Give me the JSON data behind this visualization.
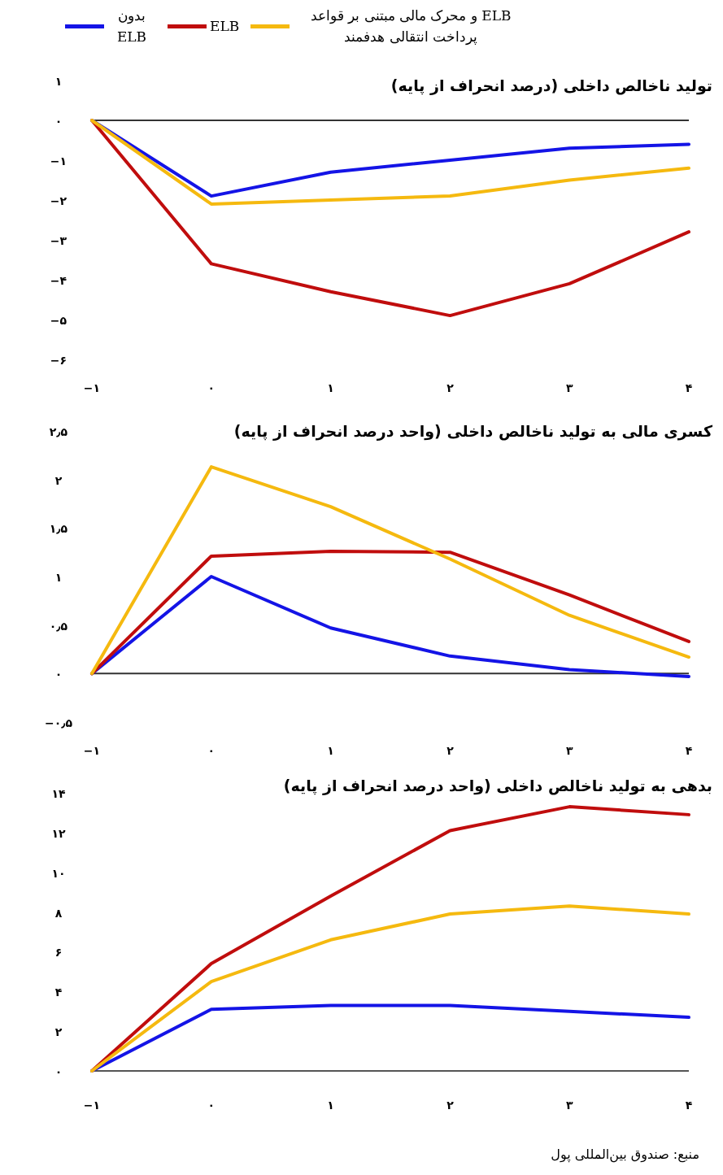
{
  "chart_data": [
    {
      "type": "line",
      "title": "تولید ناخالص داخلی (درصد انحراف از پایه)",
      "x": [
        -1,
        0,
        1,
        2,
        3,
        4
      ],
      "xlim": [
        -1,
        4
      ],
      "xticks": [
        {
          "value": -1,
          "label": "−۱"
        },
        {
          "value": 0,
          "label": "۰"
        },
        {
          "value": 1,
          "label": "۱"
        },
        {
          "value": 2,
          "label": "۲"
        },
        {
          "value": 3,
          "label": "۳"
        },
        {
          "value": 4,
          "label": "۴"
        }
      ],
      "ylim": [
        -6,
        1
      ],
      "yticks": [
        {
          "value": 1,
          "label": "۱"
        },
        {
          "value": 0,
          "label": "۰"
        },
        {
          "value": -1,
          "label": "−۱"
        },
        {
          "value": -2,
          "label": "−۲"
        },
        {
          "value": -3,
          "label": "−۳"
        },
        {
          "value": -4,
          "label": "−۴"
        },
        {
          "value": -5,
          "label": "−۵"
        },
        {
          "value": -6,
          "label": "−۶"
        }
      ],
      "legend": "top",
      "grid": false,
      "ref_lines": [
        {
          "axis": "y",
          "value": 0,
          "color": "#333333"
        }
      ],
      "series": [
        {
          "name": "بدون ELB",
          "color": "#1414e6",
          "values": [
            0,
            -1.9,
            -1.3,
            -1.0,
            -0.7,
            -0.6
          ]
        },
        {
          "name": "ELB",
          "color": "#c00d0d",
          "values": [
            0,
            -3.6,
            -4.3,
            -4.9,
            -4.1,
            -2.8
          ]
        },
        {
          "name": "ELB و محرک مالی مبتنی بر قواعد پرداخت انتقالی هدفمند",
          "color": "#f5b90f",
          "values": [
            0,
            -2.1,
            -2.0,
            -1.9,
            -1.5,
            -1.2
          ]
        }
      ]
    },
    {
      "type": "line",
      "title": "کسری مالی به تولید ناخالص داخلی (واحد درصد انحراف از پایه)",
      "x": [
        -1,
        0,
        1,
        2,
        3,
        4
      ],
      "xlim": [
        -1,
        4
      ],
      "xticks": [
        {
          "value": -1,
          "label": "−۱"
        },
        {
          "value": 0,
          "label": "۰"
        },
        {
          "value": 1,
          "label": "۱"
        },
        {
          "value": 2,
          "label": "۲"
        },
        {
          "value": 3,
          "label": "۳"
        },
        {
          "value": 4,
          "label": "۴"
        }
      ],
      "ylim": [
        -0.5,
        2.5
      ],
      "yticks": [
        {
          "value": 2.5,
          "label": "۲٫۵"
        },
        {
          "value": 2,
          "label": "۲"
        },
        {
          "value": 1.5,
          "label": "۱٫۵"
        },
        {
          "value": 1,
          "label": "۱"
        },
        {
          "value": 0.5,
          "label": "۰٫۵"
        },
        {
          "value": 0,
          "label": "۰"
        },
        {
          "value": -0.5,
          "label": "−۰٫۵"
        }
      ],
      "grid": false,
      "ref_lines": [
        {
          "axis": "y",
          "value": 0,
          "color": "#333333"
        }
      ],
      "series": [
        {
          "color": "#1414e6",
          "values": [
            0,
            1.0,
            0.47,
            0.18,
            0.04,
            -0.03
          ]
        },
        {
          "color": "#c00d0d",
          "values": [
            0,
            1.21,
            1.26,
            1.25,
            0.81,
            0.33
          ]
        },
        {
          "color": "#f5b90f",
          "values": [
            0,
            2.13,
            1.72,
            1.18,
            0.6,
            0.17
          ]
        }
      ]
    },
    {
      "type": "line",
      "title": "بدهی به تولید ناخالص داخلی (واحد درصد انحراف از پایه)",
      "x": [
        -1,
        0,
        1,
        2,
        3,
        4
      ],
      "xlim": [
        -1,
        4
      ],
      "xticks": [
        {
          "value": -1,
          "label": "−۱"
        },
        {
          "value": 0,
          "label": "۰"
        },
        {
          "value": 1,
          "label": "۱"
        },
        {
          "value": 2,
          "label": "۲"
        },
        {
          "value": 3,
          "label": "۳"
        },
        {
          "value": 4,
          "label": "۴"
        }
      ],
      "ylim": [
        0,
        14
      ],
      "yticks": [
        {
          "value": 14,
          "label": "۱۴"
        },
        {
          "value": 12,
          "label": "۱۲"
        },
        {
          "value": 10,
          "label": "۱۰"
        },
        {
          "value": 8,
          "label": "۸"
        },
        {
          "value": 6,
          "label": "۶"
        },
        {
          "value": 4,
          "label": "۴"
        },
        {
          "value": 2,
          "label": "۲"
        },
        {
          "value": 0,
          "label": "۰"
        }
      ],
      "grid": false,
      "annotations": [
        "منبع: صندوق بین‌المللی پول"
      ],
      "series": [
        {
          "color": "#1414e6",
          "values": [
            0,
            3.1,
            3.3,
            3.3,
            3.0,
            2.7
          ]
        },
        {
          "color": "#c00d0d",
          "values": [
            0,
            5.4,
            8.8,
            12.1,
            13.3,
            12.9
          ]
        },
        {
          "color": "#f5b90f",
          "values": [
            0,
            4.5,
            6.6,
            7.9,
            8.3,
            7.9
          ]
        }
      ]
    }
  ]
}
